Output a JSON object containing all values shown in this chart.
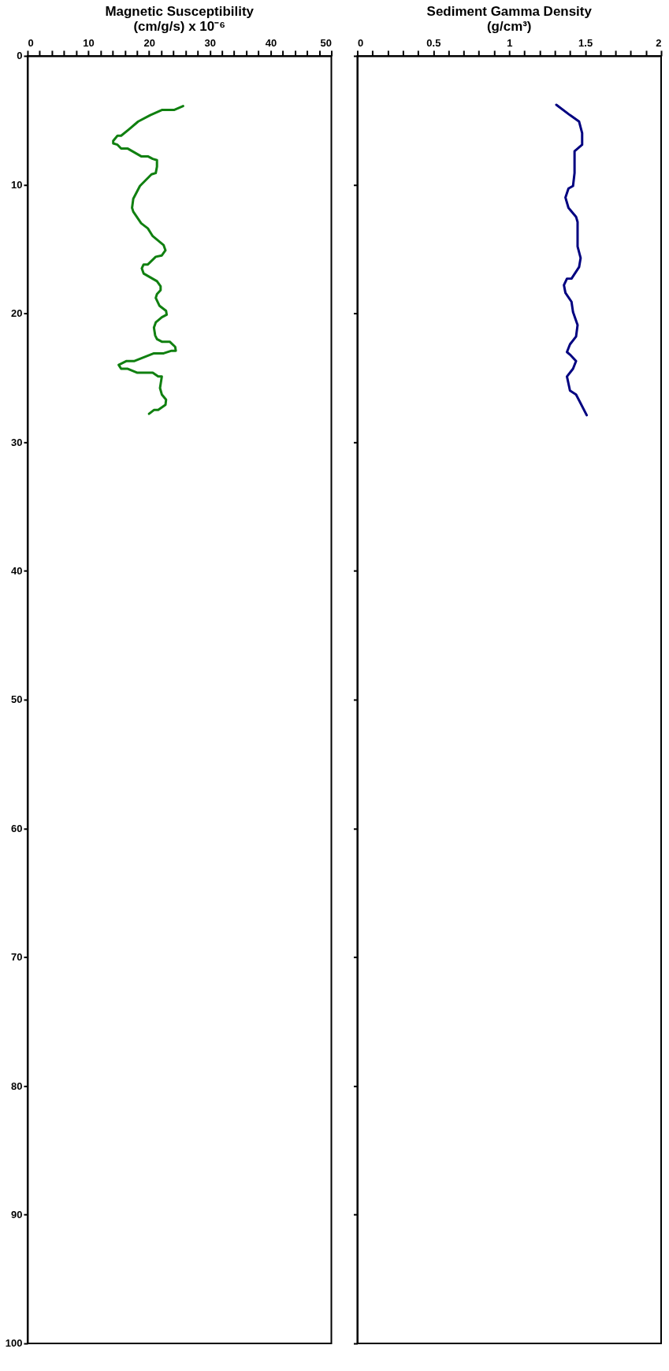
{
  "chart_data": [
    {
      "type": "line",
      "title": "Magnetic Susceptibility",
      "subtitle": "(cm/g/s) x 10⁻⁶",
      "xlim": [
        0,
        50
      ],
      "ylim": [
        100,
        0
      ],
      "xticks": [
        0,
        {
          "value": 2,
          "label": null
        },
        {
          "value": 4,
          "label": null
        },
        {
          "value": 6,
          "label": null
        },
        {
          "value": 8,
          "label": null
        },
        10,
        {
          "value": 12,
          "label": null
        },
        {
          "value": 14,
          "label": null
        },
        {
          "value": 16,
          "label": null
        },
        {
          "value": 18,
          "label": null
        },
        20,
        {
          "value": 22,
          "label": null
        },
        {
          "value": 24,
          "label": null
        },
        {
          "value": 26,
          "label": null
        },
        {
          "value": 28,
          "label": null
        },
        30,
        {
          "value": 32,
          "label": null
        },
        {
          "value": 34,
          "label": null
        },
        {
          "value": 36,
          "label": null
        },
        {
          "value": 38,
          "label": null
        },
        40,
        {
          "value": 42,
          "label": null
        },
        {
          "value": 44,
          "label": null
        },
        {
          "value": 46,
          "label": null
        },
        {
          "value": 48,
          "label": null
        },
        50
      ],
      "yticks": [
        0,
        10,
        20,
        30,
        40,
        50,
        60,
        70,
        80,
        90,
        100
      ],
      "grid": false,
      "marker": "none",
      "line_style": "solid",
      "series": [
        {
          "color": "#108010",
          "x": [
            25.6,
            24.1,
            22.1,
            20.2,
            18.2,
            16.7,
            15.4,
            14.8,
            14.1,
            14.1,
            14.8,
            15.4,
            16.5,
            18.7,
            19.8,
            20.6,
            21.3,
            21.3,
            21.1,
            20.4,
            18.5,
            17.4,
            17.2,
            17.4,
            18.7,
            19.8,
            20.6,
            22.4,
            22.7,
            22.1,
            21.1,
            19.8,
            19.1,
            18.8,
            19.1,
            21.3,
            21.9,
            21.9,
            21.3,
            21.1,
            21.7,
            22.8,
            22.9,
            22.1,
            21.1,
            20.8,
            21.0,
            21.3,
            22.1,
            23.4,
            24.3,
            24.4,
            23.7,
            22.4,
            20.8,
            17.6,
            16.3,
            15.0,
            15.4,
            16.5,
            18.0,
            20.6,
            21.5,
            22.1,
            21.8,
            22.1,
            22.8,
            22.7,
            21.5,
            20.8,
            20.0
          ],
          "values": [
            3.9,
            4.2,
            4.2,
            4.6,
            5.1,
            5.7,
            6.2,
            6.2,
            6.6,
            6.8,
            6.9,
            7.2,
            7.2,
            7.8,
            7.8,
            8.0,
            8.1,
            8.6,
            9.1,
            9.2,
            10.1,
            11.1,
            11.8,
            12.1,
            13.0,
            13.4,
            14.0,
            14.7,
            15.1,
            15.5,
            15.6,
            16.2,
            16.2,
            16.5,
            16.9,
            17.5,
            17.9,
            18.2,
            18.5,
            18.8,
            19.4,
            19.8,
            20.1,
            20.3,
            20.7,
            21.1,
            21.7,
            22.0,
            22.2,
            22.2,
            22.6,
            22.9,
            22.9,
            23.1,
            23.1,
            23.7,
            23.7,
            24.0,
            24.3,
            24.3,
            24.6,
            24.6,
            24.9,
            24.9,
            25.8,
            26.3,
            26.7,
            27.1,
            27.5,
            27.5,
            27.8
          ]
        }
      ]
    },
    {
      "type": "line",
      "title": "Sediment Gamma Density",
      "subtitle": "(g/cm³)",
      "xlim": [
        0,
        2
      ],
      "ylim": [
        100,
        0
      ],
      "xticks": [
        0,
        {
          "value": 0.1,
          "label": null
        },
        {
          "value": 0.2,
          "label": null
        },
        {
          "value": 0.3,
          "label": null
        },
        {
          "value": 0.4,
          "label": null
        },
        0.5,
        {
          "value": 0.6,
          "label": null
        },
        {
          "value": 0.7,
          "label": null
        },
        {
          "value": 0.8,
          "label": null
        },
        {
          "value": 0.9,
          "label": null
        },
        1,
        {
          "value": 1.1,
          "label": null
        },
        {
          "value": 1.2,
          "label": null
        },
        {
          "value": 1.3,
          "label": null
        },
        {
          "value": 1.4,
          "label": null
        },
        1.5,
        {
          "value": 1.6,
          "label": null
        },
        {
          "value": 1.7,
          "label": null
        },
        {
          "value": 1.8,
          "label": null
        },
        {
          "value": 1.9,
          "label": null
        },
        2
      ],
      "yticks": [
        0,
        10,
        20,
        30,
        40,
        50,
        60,
        70,
        80,
        90,
        100
      ],
      "tick_labels": "x",
      "grid": false,
      "marker": "none",
      "line_style": "solid",
      "series": [
        {
          "color": "#000080",
          "x": [
            1.31,
            1.4,
            1.46,
            1.48,
            1.48,
            1.45,
            1.43,
            1.43,
            1.43,
            1.42,
            1.39,
            1.37,
            1.39,
            1.44,
            1.45,
            1.45,
            1.45,
            1.47,
            1.46,
            1.41,
            1.38,
            1.36,
            1.37,
            1.41,
            1.42,
            1.45,
            1.44,
            1.4,
            1.38,
            1.4,
            1.44,
            1.42,
            1.38,
            1.4,
            1.44,
            1.51
          ],
          "values": [
            3.8,
            4.6,
            5.1,
            6.0,
            6.9,
            7.2,
            7.4,
            8.3,
            9.1,
            10.1,
            10.3,
            11.0,
            11.8,
            12.5,
            12.9,
            14.1,
            14.8,
            15.7,
            16.4,
            17.3,
            17.3,
            17.8,
            18.4,
            19.1,
            19.9,
            20.9,
            21.8,
            22.4,
            23.0,
            23.2,
            23.7,
            24.3,
            24.9,
            26.0,
            26.3,
            27.9
          ]
        }
      ]
    }
  ]
}
